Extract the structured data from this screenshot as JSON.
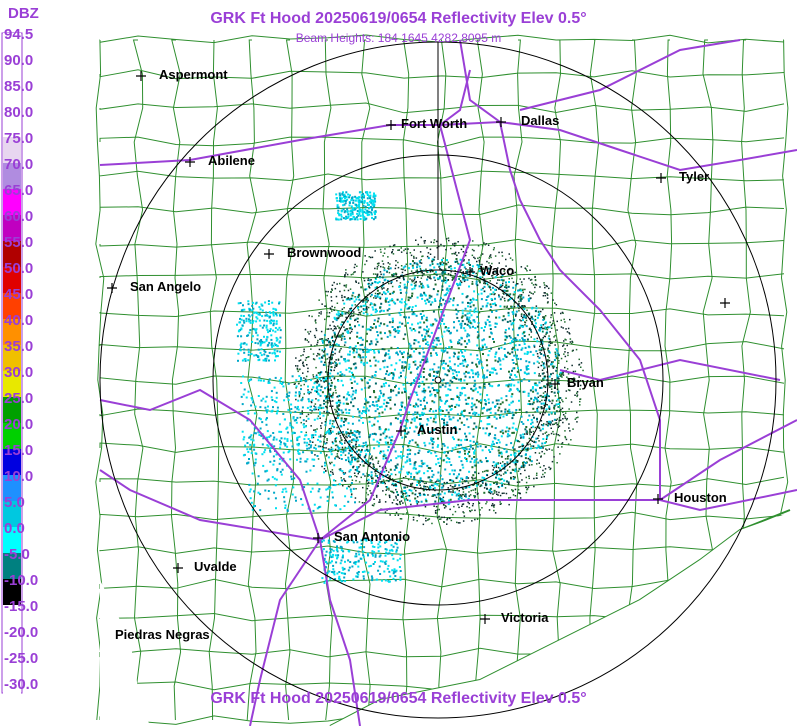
{
  "header": {
    "title": "GRK Ft Hood 20250619/0654 Reflectivity Elev 0.5°",
    "subtitle": "Beam Heights: 184 1645 4282 8095 m"
  },
  "footer": {
    "title": "GRK Ft Hood 20250619/0654 Reflectivity Elev 0.5°"
  },
  "color_scale": {
    "unit": "DBZ",
    "labels": [
      "94.5",
      "90.0",
      "85.0",
      "80.0",
      "75.0",
      "70.0",
      "65.0",
      "60.0",
      "55.0",
      "50.0",
      "45.0",
      "40.0",
      "35.0",
      "30.0",
      "25.0",
      "20.0",
      "15.0",
      "10.0",
      "5.0",
      "0.0",
      "-5.0",
      "-10.0",
      "-15.0",
      "-20.0",
      "-25.0",
      "-30.0"
    ],
    "colors": [
      "#ffffff",
      "#ffffff",
      "#ffffff",
      "#ffffff",
      "#e8d6f0",
      "#b08ce0",
      "#ff00ff",
      "#c000c0",
      "#b00000",
      "#e00000",
      "#ff4000",
      "#ff9000",
      "#f0c000",
      "#e8e800",
      "#00a000",
      "#00d000",
      "#0000e0",
      "#1e90ff",
      "#00c8e0",
      "#00ffff",
      "#008080",
      "#000000",
      "#ffffff",
      "#ffffff",
      "#ffffff",
      "#ffffff"
    ]
  },
  "cities": [
    {
      "name": "Aspermont",
      "label": "Aspermont"
    },
    {
      "name": "Fort Worth",
      "label": "Fort Worth"
    },
    {
      "name": "Dallas",
      "label": "Dallas"
    },
    {
      "name": "Abilene",
      "label": "Abilene"
    },
    {
      "name": "Tyler",
      "label": "Tyler"
    },
    {
      "name": "Brownwood",
      "label": "Brownwood"
    },
    {
      "name": "Waco",
      "label": "Waco"
    },
    {
      "name": "San Angelo",
      "label": "San Angelo"
    },
    {
      "name": "Bryan",
      "label": "Bryan"
    },
    {
      "name": "Austin",
      "label": "Austin"
    },
    {
      "name": "Houston",
      "label": "Houston"
    },
    {
      "name": "San Antonio",
      "label": "San Antonio"
    },
    {
      "name": "Uvalde",
      "label": "Uvalde"
    },
    {
      "name": "Victoria",
      "label": "Victoria"
    },
    {
      "name": "Piedras Negras",
      "label": "Piedras Negras"
    },
    {
      "name": "unlabeled",
      "label": ""
    }
  ],
  "colors": {
    "title": "#9a3fd6",
    "highways": "#9a3fd6",
    "counties": "#2f8f2f",
    "range_rings": "#000000",
    "echo_light": "#00e0f0",
    "echo_mid": "#00a8c8",
    "echo_dark": "#006666"
  }
}
